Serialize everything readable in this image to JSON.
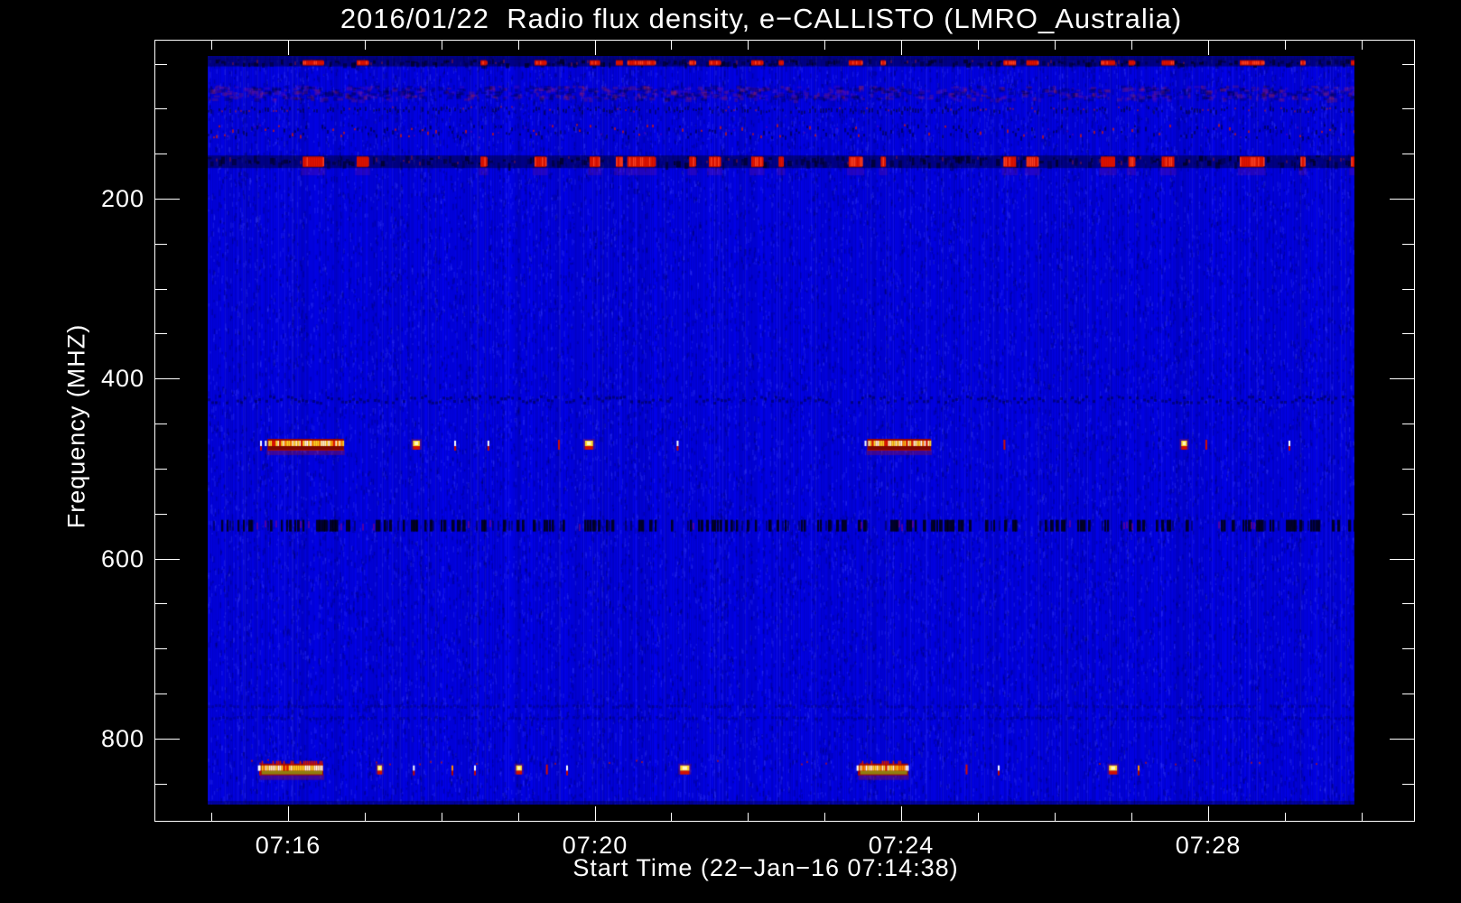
{
  "chart_data": {
    "type": "heatmap",
    "title": "2016/01/22  Radio flux density, e−CALLISTO (LMRO_Australia)",
    "instrument": "e-CALLISTO",
    "station": "LMRO_Australia",
    "date": "2016/01/22",
    "x_axis": {
      "label": "Start Time (22−Jan−16 07:14:38)",
      "start_time": "07:14:38",
      "major_tick_labels": [
        "07:16",
        "07:20",
        "07:24",
        "07:28"
      ],
      "minor_step_minutes": 1
    },
    "y_axis": {
      "label": "Frequency (MHZ)",
      "major_ticks": [
        200,
        400,
        600,
        800
      ],
      "minor_step": 50,
      "range_mhz": [
        40,
        873
      ],
      "direction": "increasing-downward"
    },
    "legend_position": "none",
    "grid": false,
    "palette": {
      "background": "#000000",
      "frame": "#ffffff",
      "base": "#0202d8",
      "stripe_light": "#1518f2",
      "stripe_dark": "#0000a8",
      "black_band": "#000014",
      "red": "#e11400",
      "dark_red": "#8c0500",
      "orange": "#ff8c00",
      "yellow": "#ffd826",
      "cream": "#fff6c0",
      "white": "#ffffff",
      "olive": "#8f7d10",
      "magenta": "#8c008c",
      "smear_purple": "rgba(150,20,130,0.22)"
    },
    "event_times_frac": [
      [
        0.083,
        0.101
      ],
      [
        0.13,
        0.14
      ],
      [
        0.238,
        0.243
      ],
      [
        0.285,
        0.295
      ],
      [
        0.333,
        0.342
      ],
      [
        0.356,
        0.362
      ],
      [
        0.366,
        0.39
      ],
      [
        0.42,
        0.425
      ],
      [
        0.437,
        0.447
      ],
      [
        0.474,
        0.484
      ],
      [
        0.498,
        0.502
      ],
      [
        0.559,
        0.571
      ],
      [
        0.587,
        0.591
      ],
      [
        0.694,
        0.705
      ],
      [
        0.714,
        0.724
      ],
      [
        0.779,
        0.791
      ],
      [
        0.803,
        0.808
      ],
      [
        0.832,
        0.843
      ],
      [
        0.9,
        0.921
      ],
      [
        0.953,
        0.957
      ],
      [
        0.997,
        1.0
      ]
    ],
    "rfi_bands": [
      {
        "name": "rfi-49mhz",
        "f0": 45,
        "f1": 53,
        "style": "dark_speckle_red",
        "smear": false
      },
      {
        "name": "noise-80mhz",
        "f0": 74,
        "f1": 89,
        "style": "mottle"
      },
      {
        "name": "rfi-101mhz",
        "f0": 97,
        "f1": 106,
        "style": "speckle_dash"
      },
      {
        "name": "rfi-124mhz",
        "f0": 117,
        "f1": 131,
        "style": "speckle_red"
      },
      {
        "name": "rfi-159mhz",
        "f0": 152,
        "f1": 166,
        "style": "dark_speckle_red",
        "smear": true
      },
      {
        "name": "rfi-423mhz",
        "f0": 418,
        "f1": 428,
        "style": "dark_dots"
      },
      {
        "name": "rfi-563mhz",
        "f0": 557,
        "f1": 570,
        "style": "barcode"
      },
      {
        "name": "rfi-764mhz",
        "f0": 762,
        "f1": 766,
        "style": "dark_dots_faint"
      },
      {
        "name": "rfi-777mhz",
        "f0": 775,
        "f1": 779,
        "style": "dark_dots_faint"
      },
      {
        "name": "speckle-826mhz",
        "f0": 823,
        "f1": 828,
        "style": "speckle_red_sparse"
      }
    ],
    "bright_lines": [
      {
        "name": "rfi-line-470mhz",
        "freq_mhz": 469,
        "olive_under": false,
        "speckle_above": false,
        "segments": [
          [
            0.0457,
            0.0473,
            "tick"
          ],
          [
            0.053,
            0.118,
            "big"
          ],
          [
            0.179,
            0.185,
            "blob"
          ],
          [
            0.215,
            0.2166,
            "tick"
          ],
          [
            0.244,
            0.2456,
            "tick"
          ],
          [
            0.3055,
            0.3071,
            "tick_red"
          ],
          [
            0.329,
            0.336,
            "blob"
          ],
          [
            0.409,
            0.4106,
            "tick"
          ],
          [
            0.576,
            0.63,
            "big"
          ],
          [
            0.694,
            0.6956,
            "tick_red"
          ],
          [
            0.849,
            0.854,
            "blob"
          ],
          [
            0.87,
            0.8716,
            "tick_red"
          ],
          [
            0.9425,
            0.9441,
            "tick"
          ]
        ]
      },
      {
        "name": "rfi-line-833mhz",
        "freq_mhz": 830,
        "olive_under": true,
        "speckle_above": true,
        "segments": [
          [
            0.0449,
            0.0465,
            "tick"
          ],
          [
            0.047,
            0.1,
            "big"
          ],
          [
            0.148,
            0.152,
            "blob"
          ],
          [
            0.179,
            0.181,
            "tick"
          ],
          [
            0.2126,
            0.2142,
            "tick_orange"
          ],
          [
            0.2323,
            0.2339,
            "tick"
          ],
          [
            0.269,
            0.274,
            "blob"
          ],
          [
            0.295,
            0.2966,
            "tick_red"
          ],
          [
            0.3126,
            0.3142,
            "tick"
          ],
          [
            0.412,
            0.42,
            "blob"
          ],
          [
            0.567,
            0.5686,
            "tick_orange"
          ],
          [
            0.569,
            0.61,
            "big"
          ],
          [
            0.661,
            0.6626,
            "tick_red"
          ],
          [
            0.689,
            0.6906,
            "tick"
          ],
          [
            0.786,
            0.793,
            "blob"
          ],
          [
            0.811,
            0.8126,
            "tick_orange"
          ]
        ]
      }
    ]
  }
}
